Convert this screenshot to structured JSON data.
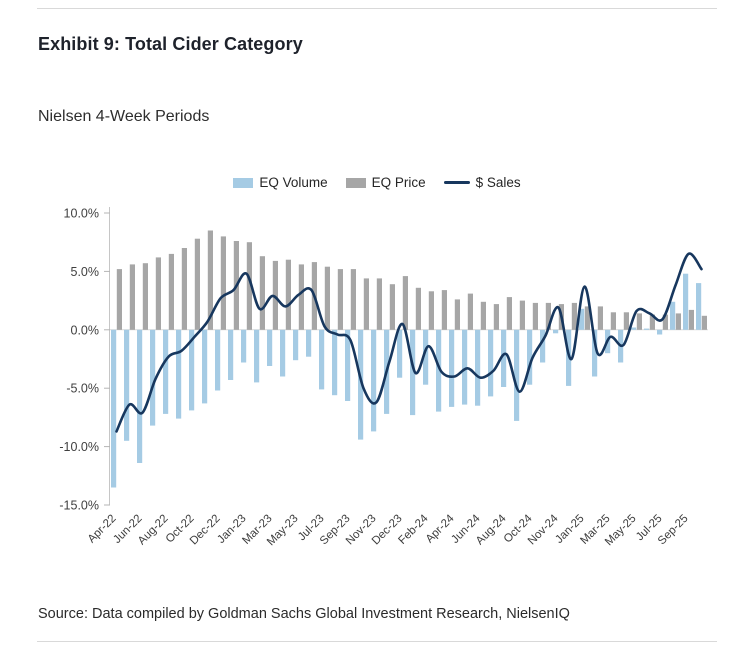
{
  "page": {
    "title": "Exhibit 9: Total Cider Category",
    "subtitle": "Nielsen 4-Week Periods",
    "source": "Source: Data compiled by Goldman Sachs Global Investment Research, NielsenIQ"
  },
  "legend": [
    {
      "label": "EQ Volume",
      "color": "#a5cbe4",
      "type": "bar"
    },
    {
      "label": "EQ Price",
      "color": "#a6a6a6",
      "type": "bar"
    },
    {
      "label": "$ Sales",
      "color": "#17375e",
      "type": "line"
    }
  ],
  "chart_data": {
    "type": "bar",
    "subtype": "grouped bars with overlaid line",
    "title": "Exhibit 9: Total Cider Category",
    "subtitle": "Nielsen 4-Week Periods",
    "x_tick_labels": [
      "Apr-22",
      "Jun-22",
      "Aug-22",
      "Oct-22",
      "Dec-22",
      "Jan-23",
      "Mar-23",
      "May-23",
      "Jul-23",
      "Sep-23",
      "Nov-23",
      "Dec-23",
      "Feb-24",
      "Apr-24",
      "Jun-24",
      "Aug-24",
      "Oct-24",
      "Nov-24",
      "Jan-25",
      "Mar-25",
      "May-25",
      "Jul-25",
      "Sep-25"
    ],
    "label_every": 2,
    "n_points": 46,
    "y_ticks": [
      10,
      5,
      0,
      -5,
      -10,
      -15
    ],
    "y_tick_labels": [
      "10.0%",
      "5.0%",
      "0.0%",
      "-5.0%",
      "-10.0%",
      "-15.0%"
    ],
    "ylim": [
      -15,
      10
    ],
    "grid": false,
    "legend_position": "top",
    "series": [
      {
        "name": "EQ Volume",
        "type": "bar",
        "color": "#a5cbe4",
        "values": [
          -13.5,
          -9.5,
          -11.4,
          -8.2,
          -7.2,
          -7.6,
          -6.9,
          -6.3,
          -5.2,
          -4.3,
          -2.8,
          -4.5,
          -3.1,
          -4.0,
          -2.6,
          -2.3,
          -5.1,
          -5.6,
          -6.1,
          -9.4,
          -8.7,
          -7.2,
          -4.1,
          -7.3,
          -4.7,
          -7.0,
          -6.6,
          -6.4,
          -6.5,
          -5.7,
          -4.9,
          -7.8,
          -4.7,
          -2.8,
          -0.3,
          -4.8,
          1.8,
          -4.0,
          -2.0,
          -2.8,
          0.2,
          0.1,
          -0.4,
          2.4,
          4.8,
          4.0
        ]
      },
      {
        "name": "EQ Price",
        "type": "bar",
        "color": "#a6a6a6",
        "values": [
          5.2,
          5.6,
          5.7,
          6.2,
          6.5,
          7.0,
          7.8,
          8.5,
          8.0,
          7.6,
          7.5,
          6.3,
          5.9,
          6.0,
          5.6,
          5.8,
          5.4,
          5.2,
          5.2,
          4.4,
          4.4,
          3.9,
          4.6,
          3.6,
          3.3,
          3.4,
          2.6,
          3.1,
          2.4,
          2.2,
          2.8,
          2.5,
          2.3,
          2.3,
          2.2,
          2.3,
          2.0,
          2.0,
          1.5,
          1.5,
          1.4,
          1.3,
          1.3,
          1.4,
          1.7,
          1.2
        ]
      },
      {
        "name": "$ Sales",
        "type": "line",
        "color": "#17375e",
        "values": [
          -8.7,
          -6.4,
          -7.1,
          -4.2,
          -2.3,
          -1.8,
          -0.6,
          0.7,
          2.7,
          3.4,
          4.8,
          1.8,
          2.9,
          2.0,
          3.0,
          3.4,
          0.3,
          -0.4,
          -0.9,
          -5.0,
          -6.2,
          -2.7,
          0.5,
          -3.7,
          -1.4,
          -3.6,
          -4.0,
          -3.3,
          -4.1,
          -3.5,
          -2.1,
          -5.3,
          -2.4,
          -0.5,
          1.9,
          -2.5,
          3.7,
          -2.0,
          -0.6,
          -1.3,
          1.6,
          1.4,
          0.9,
          3.8,
          6.5,
          5.2
        ]
      }
    ]
  }
}
